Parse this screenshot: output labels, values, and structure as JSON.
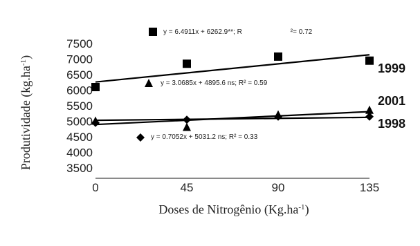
{
  "chart_data": {
    "type": "scatter",
    "xlabel": "Doses de Nitrogênio (Kg.ha",
    "xlabel_sup": "-1",
    "xlabel_end": ")",
    "ylabel": "Produtividade (kg.ha",
    "ylabel_sup": "-1",
    "ylabel_end": ")",
    "xlim": [
      0,
      135
    ],
    "ylim": [
      3500,
      7500
    ],
    "x_ticks": [
      0,
      45,
      90,
      135
    ],
    "x_tick_labels": [
      "0",
      "45",
      "90",
      "135"
    ],
    "y_ticks": [
      3500,
      4000,
      4500,
      5000,
      5500,
      6000,
      6500,
      7000,
      7500
    ],
    "y_tick_labels": [
      "3500",
      "4000",
      "4500",
      "5000",
      "5500",
      "6000",
      "6500",
      "7000",
      "7500"
    ],
    "grid": false,
    "series": [
      {
        "name": "1999",
        "marker": "square",
        "x": [
          0,
          45,
          90,
          135
        ],
        "y": [
          6100,
          6850,
          7080,
          6950
        ],
        "fit": {
          "slope": 6.4911,
          "intercept": 6262.9
        },
        "equation": "y = 6.4911x + 6262.9**;  R",
        "equation_end": "²= 0.72"
      },
      {
        "name": "2001",
        "marker": "triangle",
        "x": [
          0,
          45,
          90,
          135
        ],
        "y": [
          5000,
          4800,
          5200,
          5350
        ],
        "fit": {
          "slope": 3.0685,
          "intercept": 4895.6
        },
        "equation": "y = 3.0685x + 4895.6 ns; R² = 0.59"
      },
      {
        "name": "1998",
        "marker": "diamond",
        "x": [
          0,
          45,
          90,
          135
        ],
        "y": [
          4950,
          5050,
          5150,
          5150
        ],
        "fit": {
          "slope": 0.7052,
          "intercept": 5031.2
        },
        "equation": "y = 0.7052x + 5031.2 ns; R² = 0.33"
      }
    ]
  }
}
